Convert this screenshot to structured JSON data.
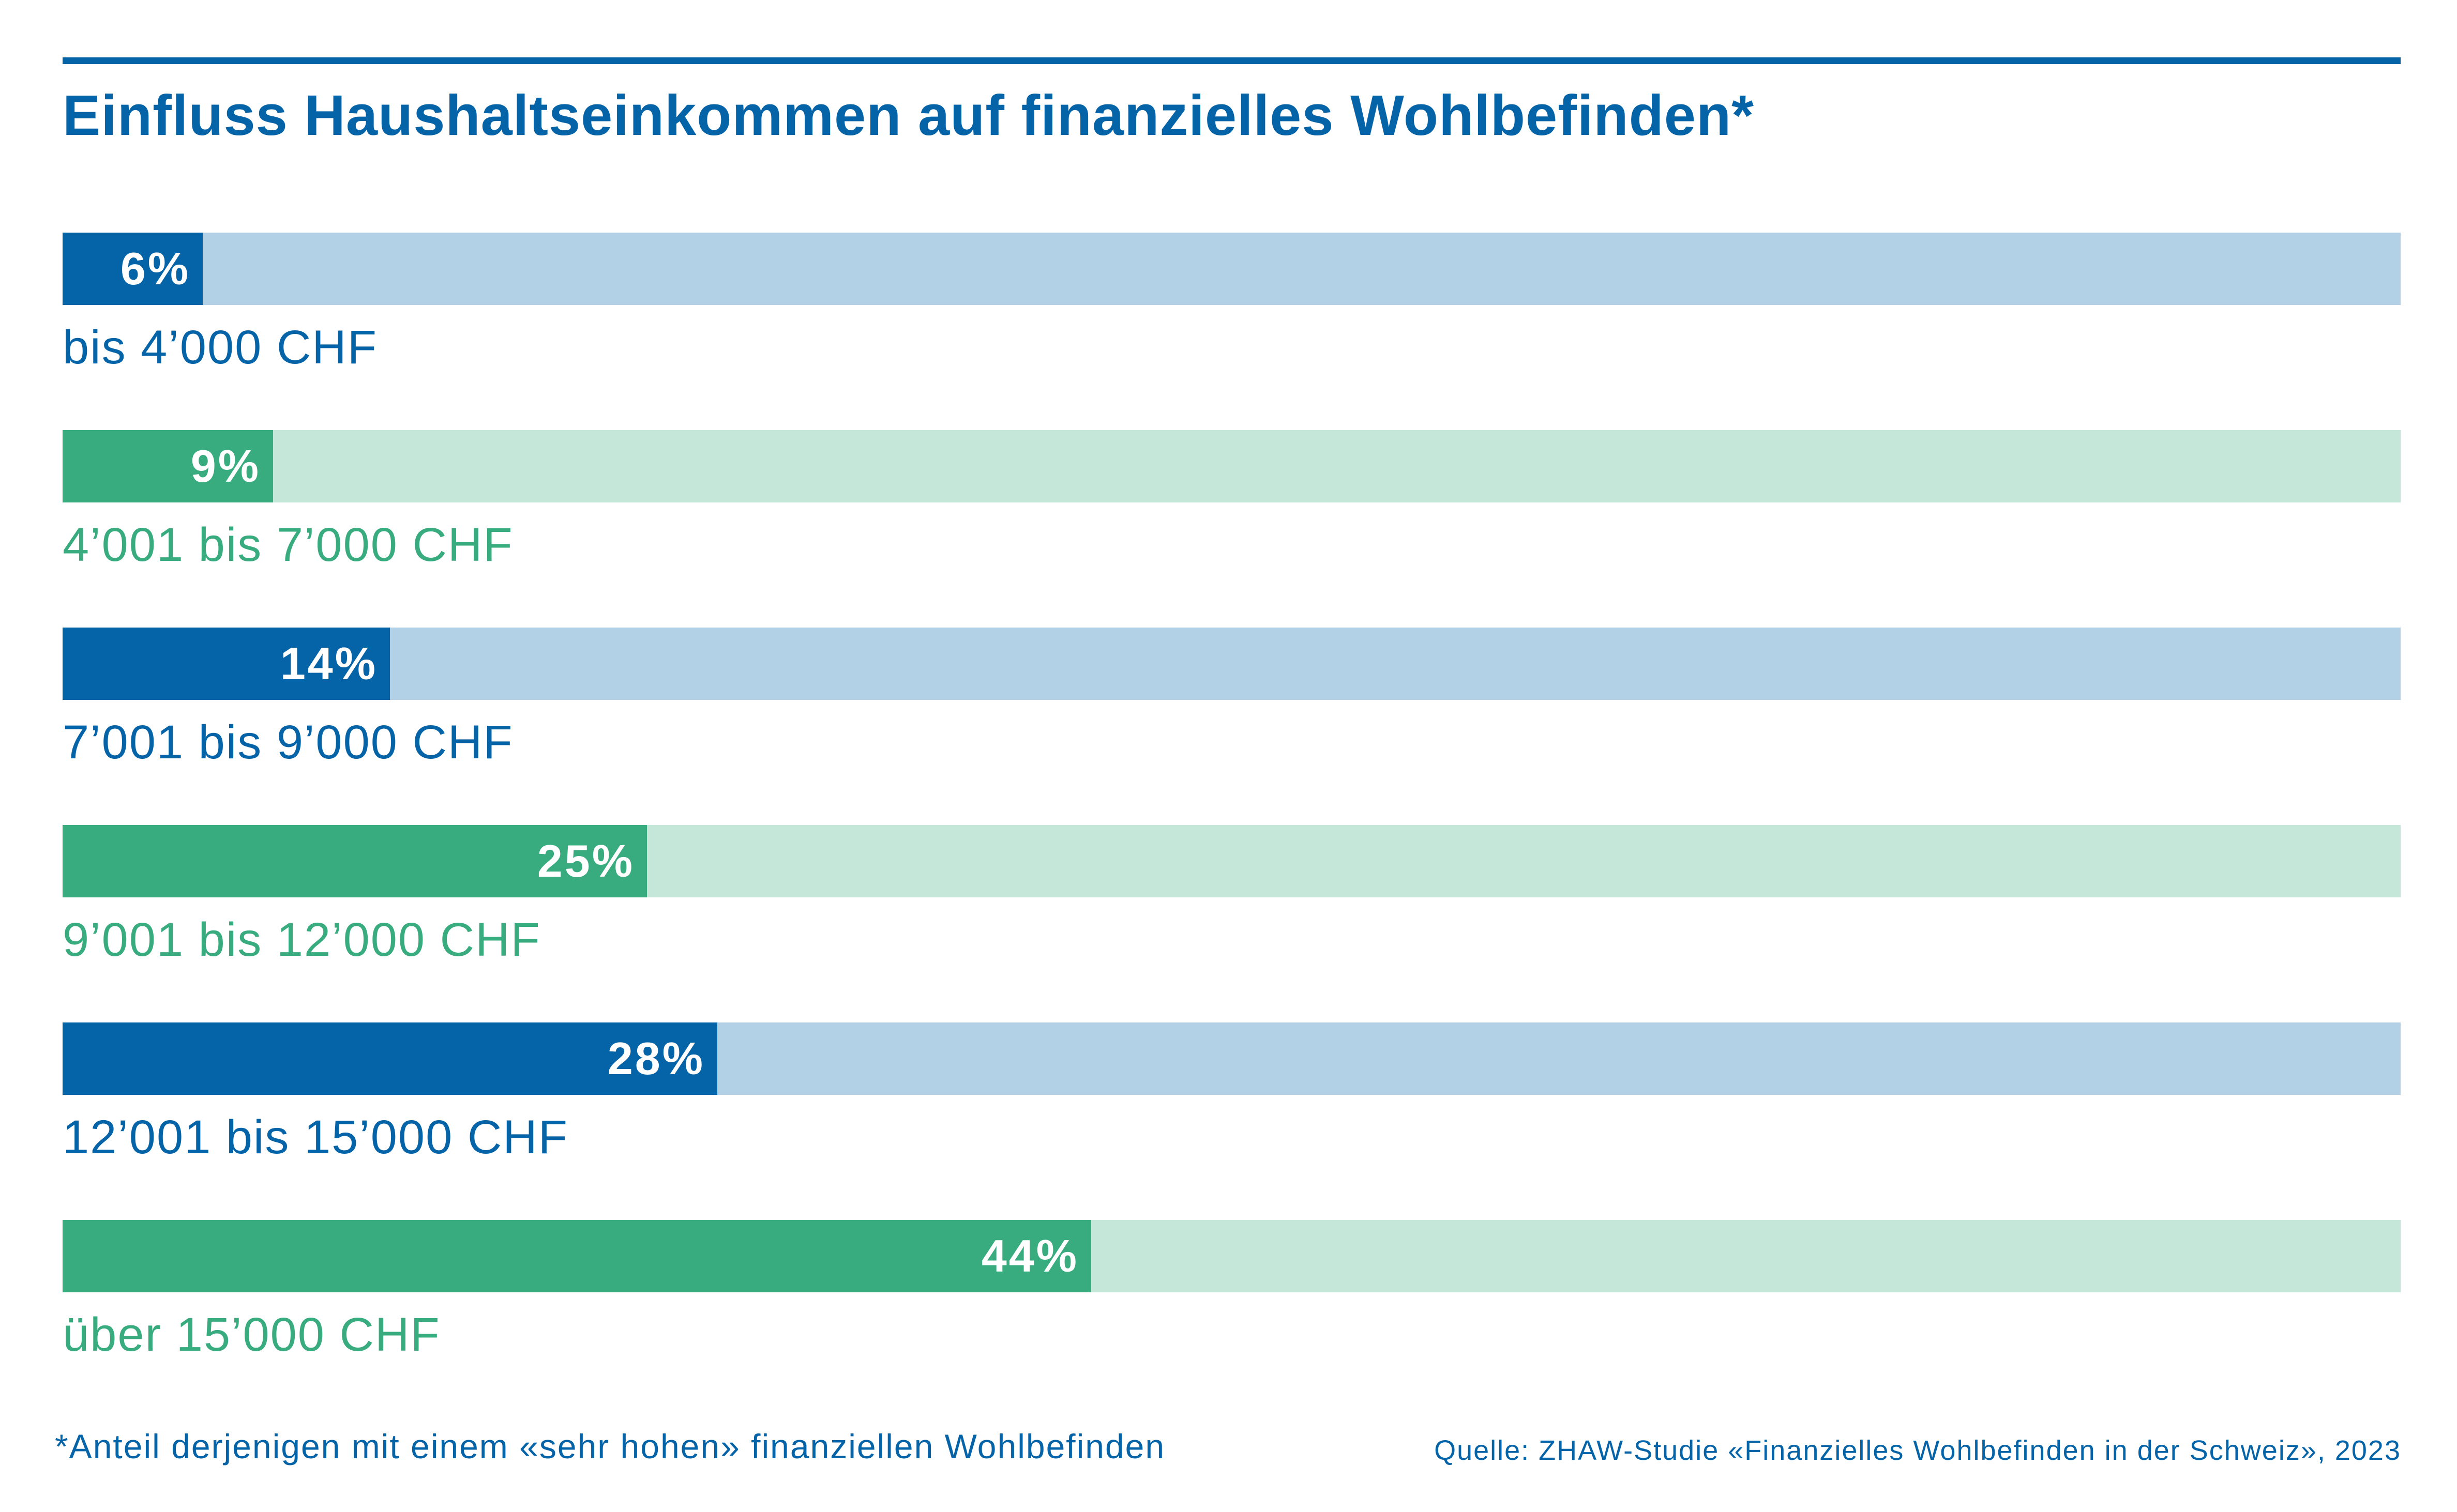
{
  "chart_data": {
    "type": "bar",
    "orientation": "horizontal",
    "title": "Einfluss Haushaltseinkommen auf finanzielles Wohlbefinden*",
    "categories": [
      "bis 4’000 CHF",
      "4’001 bis 7’000 CHF",
      "7’001 bis 9’000 CHF",
      "9’001 bis 12’000 CHF",
      "12’001 bis 15’000 CHF",
      "über 15’000 CHF"
    ],
    "values": [
      6,
      9,
      14,
      25,
      28,
      44
    ],
    "value_labels": [
      "6%",
      "9%",
      "14%",
      "25%",
      "28%",
      "44%"
    ],
    "unit": "%",
    "xlim": [
      0,
      100
    ],
    "grid": false,
    "legend": "none",
    "footnote": "*Anteil derjenigen mit einem «sehr hohen» finanziellen Wohlbefinden",
    "source": "Quelle: ZHAW-Studie «Finanzielles Wohlbefinden in der Schweiz», 2023"
  },
  "colors": {
    "blue": "#0563a8",
    "blue_light": "#b2d1e6",
    "green": "#38ab7f",
    "green_light": "#c5e7d9",
    "rule": "#0563a8",
    "title": "#0563a8"
  }
}
